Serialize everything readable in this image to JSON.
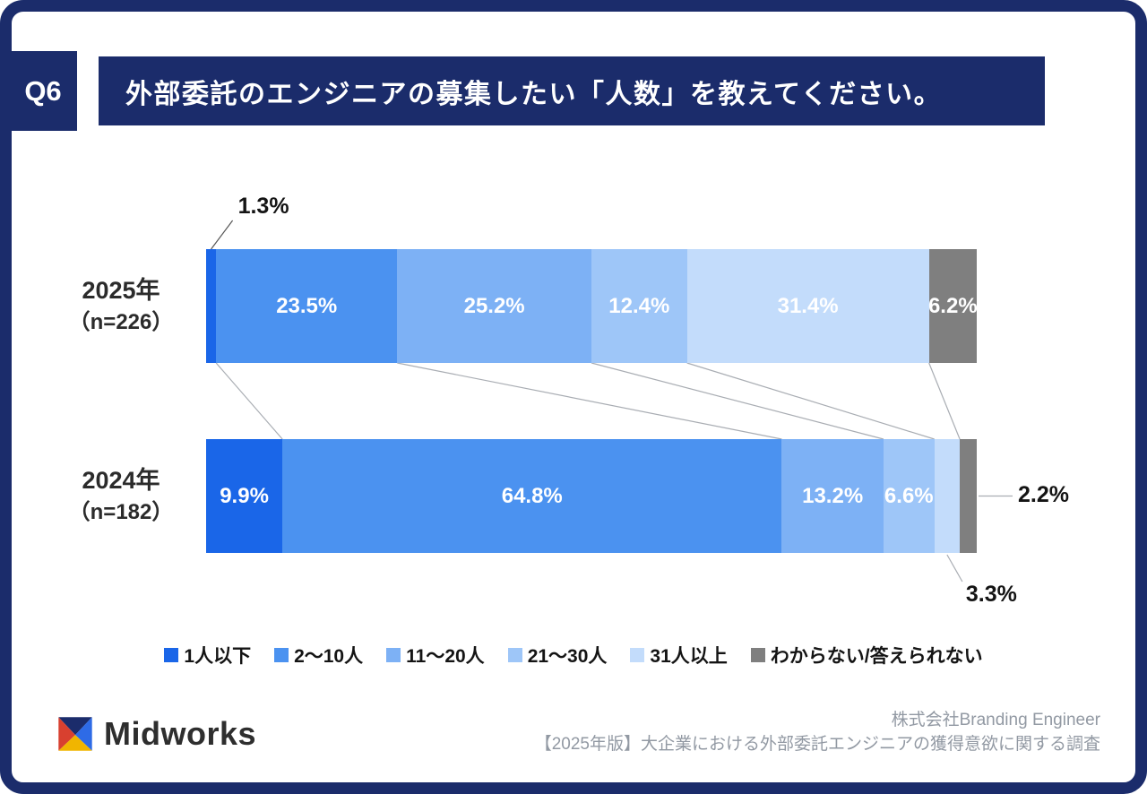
{
  "page": {
    "frame_color": "#1b2c6b",
    "background": "#ffffff"
  },
  "header": {
    "question_label": "Q6",
    "title": "外部委託のエンジニアの募集したい「人数」を教えてください。"
  },
  "chart_data": {
    "type": "bar",
    "orientation": "horizontal_stacked",
    "title": "外部委託のエンジニアの募集したい「人数」",
    "xlim": [
      0,
      100
    ],
    "value_suffix": "%",
    "legend_position": "bottom",
    "categories": [
      "1人以下",
      "2〜10人",
      "11〜20人",
      "21〜30人",
      "31人以上",
      "わからない/答えられない"
    ],
    "colors": [
      "#1a66e8",
      "#4b92f0",
      "#7db1f5",
      "#9ec6f8",
      "#c3dcfb",
      "#7f7f7f"
    ],
    "rows": [
      {
        "label_line1": "2025年",
        "label_line2": "（n=226）",
        "n": 226,
        "values": [
          1.3,
          23.5,
          25.2,
          12.4,
          31.4,
          6.2
        ],
        "outside_labels": [
          {
            "index": 0,
            "position": "top",
            "text": "1.3%"
          }
        ]
      },
      {
        "label_line1": "2024年",
        "label_line2": "（n=182）",
        "n": 182,
        "values": [
          9.9,
          64.8,
          13.2,
          6.6,
          3.3,
          2.2
        ],
        "outside_labels": [
          {
            "index": 4,
            "position": "bottom",
            "text": "3.3%"
          },
          {
            "index": 5,
            "position": "right",
            "text": "2.2%"
          }
        ]
      }
    ]
  },
  "footer": {
    "brand": "Midworks",
    "credit_line1": "株式会社Branding Engineer",
    "credit_line2": "【2025年版】大企業における外部委託エンジニアの獲得意欲に関する調査"
  }
}
